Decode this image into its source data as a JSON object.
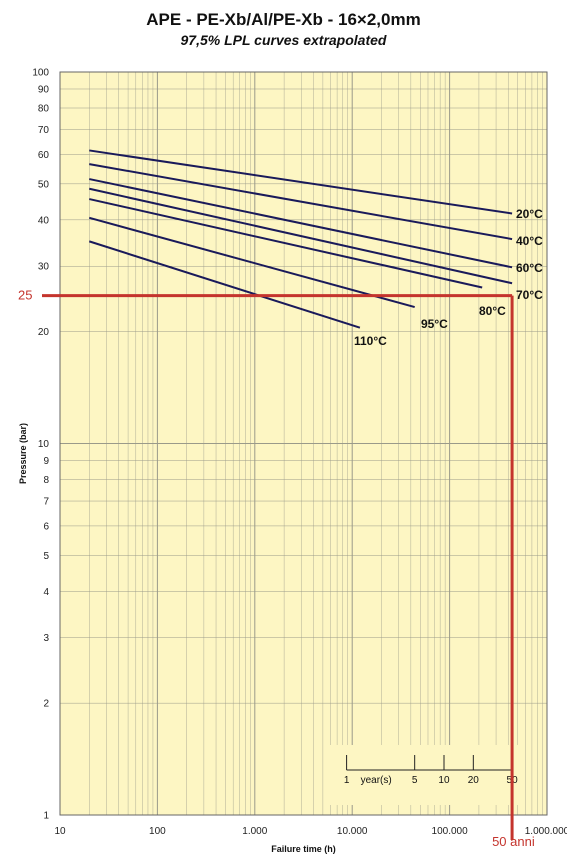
{
  "chart_data": {
    "type": "line",
    "title": "APE - PE-Xb/Al/PE-Xb - 16×2,0mm",
    "subtitle": "97,5% LPL curves extrapolated",
    "xlabel": "Failure time (h)",
    "ylabel": "Pressure (bar)",
    "xscale": "log",
    "yscale": "log",
    "xlim": [
      10,
      1000000
    ],
    "ylim": [
      1,
      100
    ],
    "grid": true,
    "x_ticks": [
      {
        "v": 10,
        "label": "10"
      },
      {
        "v": 100,
        "label": "100"
      },
      {
        "v": 1000,
        "label": "1.000"
      },
      {
        "v": 10000,
        "label": "10.000"
      },
      {
        "v": 100000,
        "label": "100.000"
      },
      {
        "v": 1000000,
        "label": "1.000.000"
      }
    ],
    "y_ticks": [
      {
        "v": 1,
        "label": "1"
      },
      {
        "v": 2,
        "label": "2"
      },
      {
        "v": 3,
        "label": "3"
      },
      {
        "v": 4,
        "label": "4"
      },
      {
        "v": 5,
        "label": "5"
      },
      {
        "v": 6,
        "label": "6"
      },
      {
        "v": 7,
        "label": "7"
      },
      {
        "v": 8,
        "label": "8"
      },
      {
        "v": 9,
        "label": "9"
      },
      {
        "v": 10,
        "label": "10"
      },
      {
        "v": 20,
        "label": "20"
      },
      {
        "v": 30,
        "label": "30"
      },
      {
        "v": 40,
        "label": "40"
      },
      {
        "v": 50,
        "label": "50"
      },
      {
        "v": 60,
        "label": "60"
      },
      {
        "v": 70,
        "label": "70"
      },
      {
        "v": 80,
        "label": "80"
      },
      {
        "v": 90,
        "label": "90"
      },
      {
        "v": 100,
        "label": "100"
      }
    ],
    "series": [
      {
        "name": "20°C",
        "x": [
          20,
          438000
        ],
        "y": [
          61.5,
          41.6
        ]
      },
      {
        "name": "40°C",
        "x": [
          20,
          438000
        ],
        "y": [
          56.5,
          35.5
        ]
      },
      {
        "name": "60°C",
        "x": [
          20,
          438000
        ],
        "y": [
          51.5,
          29.8
        ]
      },
      {
        "name": "70°C",
        "x": [
          20,
          438000
        ],
        "y": [
          48.5,
          27.0
        ]
      },
      {
        "name": "80°C",
        "x": [
          20,
          216000
        ],
        "y": [
          45.5,
          26.3
        ]
      },
      {
        "name": "95°C",
        "x": [
          20,
          43800
        ],
        "y": [
          40.5,
          23.3
        ]
      },
      {
        "name": "110°C",
        "x": [
          20,
          12000
        ],
        "y": [
          35.0,
          20.5
        ]
      }
    ],
    "years_scale": {
      "label": "year(s)",
      "ticks": [
        {
          "label": "1",
          "hours": 8760
        },
        {
          "label": "5",
          "hours": 43800
        },
        {
          "label": "10",
          "hours": 87600
        },
        {
          "label": "20",
          "hours": 175200
        },
        {
          "label": "50",
          "hours": 438000
        }
      ]
    },
    "annotations": {
      "pressure_line": {
        "label": "25",
        "value": 25
      },
      "time_line": {
        "label": "50 anni",
        "value": 438000
      },
      "color": "#c4342d"
    },
    "colors": {
      "background": "#fdf6c3",
      "grid": "#9a9a8a",
      "curve": "#1a1a5a"
    }
  }
}
